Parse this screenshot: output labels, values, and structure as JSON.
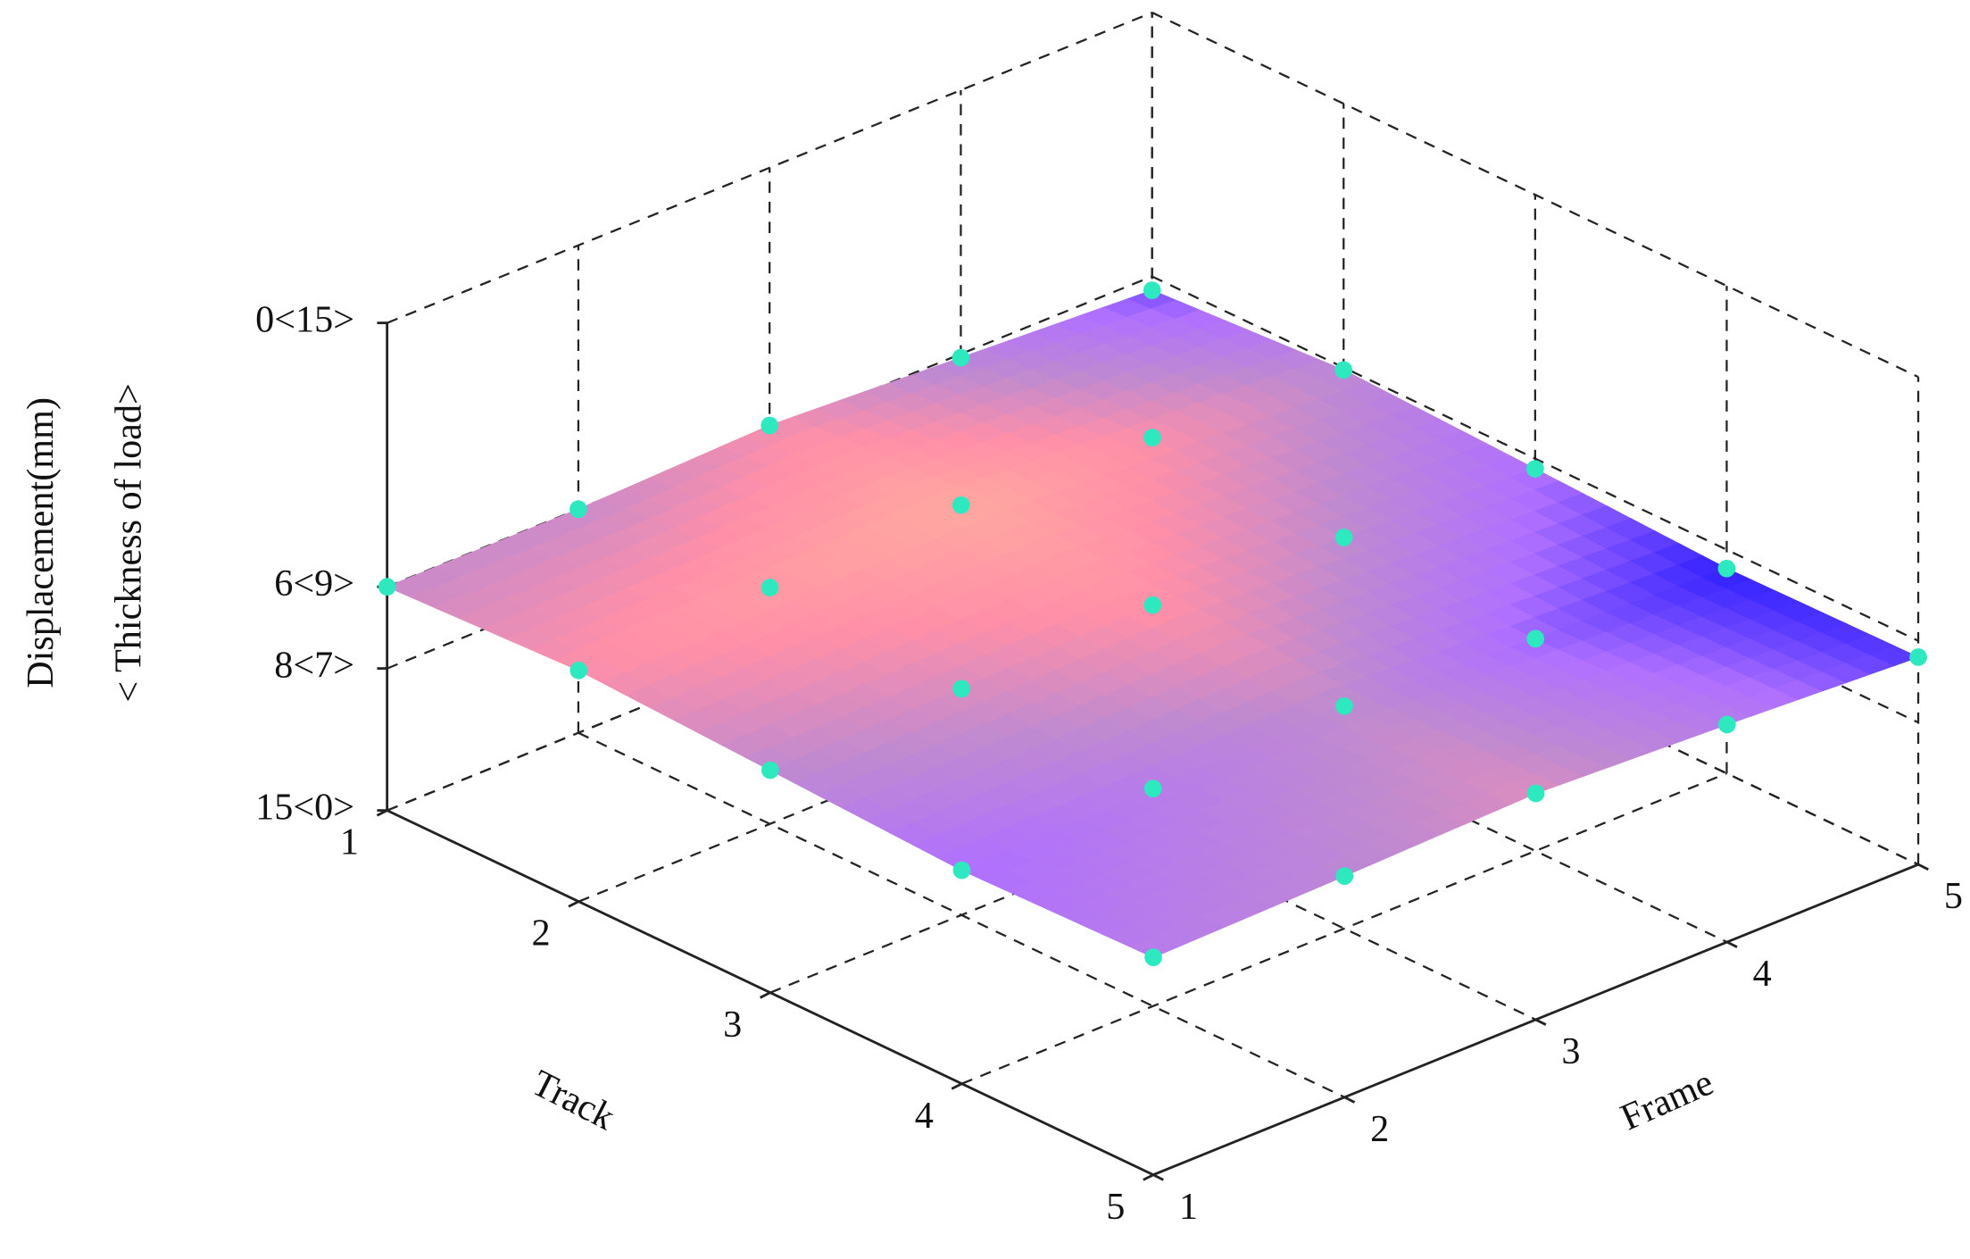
{
  "chart_data": {
    "type": "surface3d",
    "x_label": "Track",
    "y_label": "Frame",
    "z_label": "Displacement(mm)",
    "z_label2": "< Thickness of load>",
    "xlim": [
      1,
      5
    ],
    "xticks": [
      1,
      2,
      3,
      4,
      5
    ],
    "ylim": [
      1,
      5
    ],
    "yticks": [
      1,
      2,
      3,
      4,
      5
    ],
    "zlim": [
      0,
      15
    ],
    "zticks": [
      {
        "value": 0,
        "label": "0<15>"
      },
      {
        "value": 6,
        "label": "6<9>"
      },
      {
        "value": 8,
        "label": "8<7>"
      },
      {
        "value": 15,
        "label": "15<0>"
      }
    ],
    "z": [
      [
        6.0,
        6.0,
        5.86,
        6.09,
        6.34
      ],
      [
        5.83,
        5.71,
        5.6,
        5.83,
        6.06
      ],
      [
        6.03,
        5.94,
        5.8,
        6.03,
        6.25
      ],
      [
        6.25,
        6.15,
        6.03,
        6.28,
        6.46
      ],
      [
        6.15,
        6.06,
        5.94,
        6.15,
        6.4
      ]
    ],
    "point_color": "#2ee8c0",
    "colormap": [
      "#ffa8a0",
      "#ff8fa8",
      "#c08ad0",
      "#b070ff",
      "#3020ff"
    ],
    "grid": true
  }
}
